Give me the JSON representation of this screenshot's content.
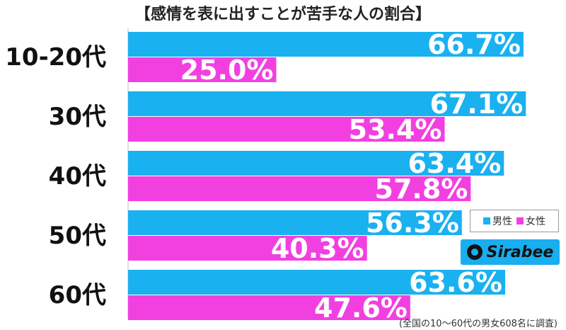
{
  "chart_data": {
    "type": "bar",
    "orientation": "horizontal",
    "title": "【感情を表に出すことが苦手な人の割合】",
    "categories": [
      "10-20代",
      "30代",
      "40代",
      "50代",
      "60代"
    ],
    "series": [
      {
        "name": "男性",
        "color": "#1ab1f0",
        "values": [
          66.7,
          67.1,
          63.4,
          56.3,
          63.6
        ]
      },
      {
        "name": "女性",
        "color": "#f240e0",
        "values": [
          25.0,
          53.4,
          57.8,
          40.3,
          47.6
        ]
      }
    ],
    "value_suffix": "%",
    "xlim": [
      0,
      100
    ],
    "legend": "right"
  },
  "logo": {
    "text": "Sirabee"
  },
  "footnote": "(全国の10～60代の男女608名に調査)"
}
